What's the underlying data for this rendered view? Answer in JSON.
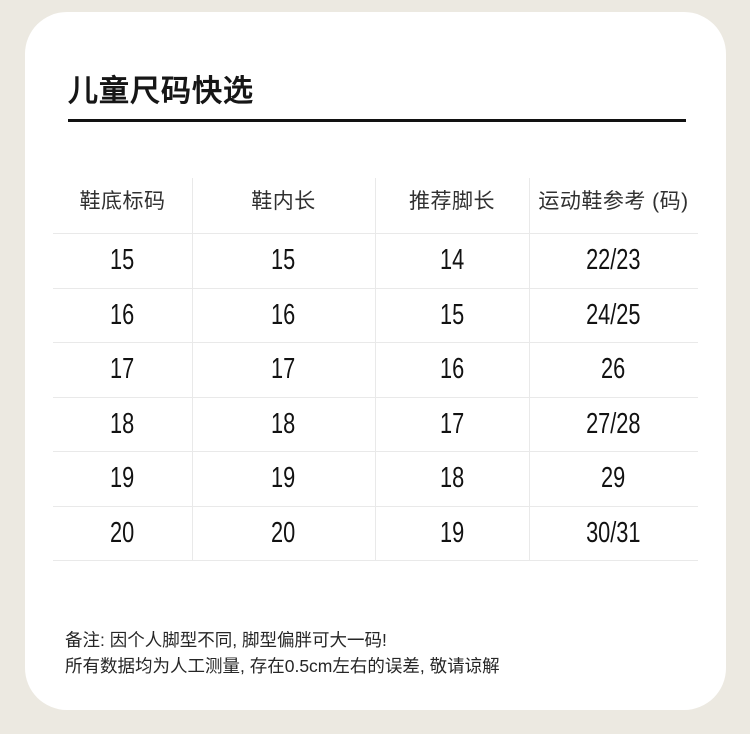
{
  "title": "儿童尺码快选",
  "table": {
    "headers": [
      "鞋底标码",
      "鞋内长",
      "推荐脚长",
      "运动鞋参考 (码)"
    ],
    "rows": [
      [
        "15",
        "15",
        "14",
        "22/23"
      ],
      [
        "16",
        "16",
        "15",
        "24/25"
      ],
      [
        "17",
        "17",
        "16",
        "26"
      ],
      [
        "18",
        "18",
        "17",
        "27/28"
      ],
      [
        "19",
        "19",
        "18",
        "29"
      ],
      [
        "20",
        "20",
        "19",
        "30/31"
      ]
    ]
  },
  "notes": {
    "line1": "备注: 因个人脚型不同, 脚型偏胖可大一码!",
    "line2": "所有数据均为人工测量, 存在0.5cm左右的误差, 敬请谅解"
  },
  "colors": {
    "page_background": "#ece9e1",
    "card_background": "#ffffff",
    "title_text": "#161616",
    "underline": "#121212",
    "grid_line": "#e9e9e9",
    "header_text": "#303030",
    "cell_text": "#121212",
    "note_text": "#262626"
  },
  "chart_data": {
    "type": "table",
    "title": "儿童尺码快选",
    "columns": [
      "鞋底标码",
      "鞋内长",
      "推荐脚长",
      "运动鞋参考 (码)"
    ],
    "rows": [
      [
        15,
        15,
        14,
        "22/23"
      ],
      [
        16,
        16,
        15,
        "24/25"
      ],
      [
        17,
        17,
        16,
        "26"
      ],
      [
        18,
        18,
        17,
        "27/28"
      ],
      [
        19,
        19,
        18,
        "29"
      ],
      [
        20,
        20,
        19,
        "30/31"
      ]
    ],
    "annotations": [
      "备注: 因个人脚型不同, 脚型偏胖可大一码!",
      "所有数据均为人工测量, 存在0.5cm左右的误差, 敬请谅解"
    ],
    "layout": {
      "grid": "light-gray inner lines, no outer border",
      "header_row": true
    }
  }
}
